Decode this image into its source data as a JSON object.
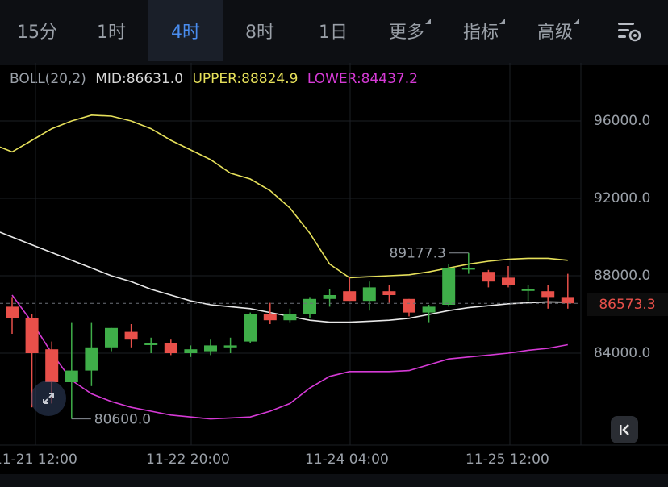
{
  "tabs": [
    {
      "label": "15分",
      "active": false,
      "has_menu": false
    },
    {
      "label": "1时",
      "active": false,
      "has_menu": false
    },
    {
      "label": "4时",
      "active": true,
      "has_menu": false
    },
    {
      "label": "8时",
      "active": false,
      "has_menu": false
    },
    {
      "label": "1日",
      "active": false,
      "has_menu": false
    },
    {
      "label": "更多",
      "active": false,
      "has_menu": true
    },
    {
      "label": "指标",
      "active": false,
      "has_menu": true
    },
    {
      "label": "高级",
      "active": false,
      "has_menu": true
    }
  ],
  "toolbar": {
    "settings_icon": "chart-settings-icon"
  },
  "indicator": {
    "name": "BOLL(20,2)",
    "mid": "MID:86631.0",
    "upper": "UPPER:88824.9",
    "lower": "LOWER:84437.2"
  },
  "colors": {
    "up": "#3fae49",
    "down": "#e8504a",
    "upper": "#e6e05a",
    "mid": "#e8e8e8",
    "lower": "#d63ad6",
    "active_tab": "#4a8df0"
  },
  "price_axis": {
    "ticks": [
      "96000.0",
      "92000.0",
      "88000.0",
      "84000.0"
    ]
  },
  "current_price": "86573.3",
  "time_axis": {
    "ticks": [
      "11-21 12:00",
      "11-22 20:00",
      "11-24 04:00",
      "11-25 12:00"
    ]
  },
  "annotations": {
    "high": "89177.3",
    "low": "80600.0"
  },
  "buttons": {
    "collapse_icon": "collapse-left-icon",
    "expand_icon": "expand-arrows-icon"
  },
  "chart_data": {
    "type": "candlestick",
    "interval": "4h",
    "ylim": [
      79500,
      98500
    ],
    "candles": [
      {
        "o": 86400,
        "h": 86900,
        "l": 85000,
        "c": 85800
      },
      {
        "o": 85800,
        "h": 86000,
        "l": 81200,
        "c": 84000
      },
      {
        "o": 84200,
        "h": 84600,
        "l": 81400,
        "c": 82500
      },
      {
        "o": 82500,
        "h": 85600,
        "l": 80600,
        "c": 83100
      },
      {
        "o": 83100,
        "h": 85600,
        "l": 82300,
        "c": 84300
      },
      {
        "o": 84300,
        "h": 85300,
        "l": 84100,
        "c": 85300
      },
      {
        "o": 85100,
        "h": 85500,
        "l": 84300,
        "c": 84700
      },
      {
        "o": 84500,
        "h": 84800,
        "l": 84000,
        "c": 84500
      },
      {
        "o": 84500,
        "h": 84700,
        "l": 83900,
        "c": 84000
      },
      {
        "o": 84000,
        "h": 84400,
        "l": 83800,
        "c": 84200
      },
      {
        "o": 84100,
        "h": 84700,
        "l": 83900,
        "c": 84400
      },
      {
        "o": 84300,
        "h": 84800,
        "l": 84000,
        "c": 84400
      },
      {
        "o": 84600,
        "h": 86100,
        "l": 84500,
        "c": 86000
      },
      {
        "o": 86000,
        "h": 86600,
        "l": 85500,
        "c": 85700
      },
      {
        "o": 85700,
        "h": 86300,
        "l": 85600,
        "c": 86000
      },
      {
        "o": 86000,
        "h": 86900,
        "l": 85800,
        "c": 86800
      },
      {
        "o": 86800,
        "h": 87300,
        "l": 86400,
        "c": 87000
      },
      {
        "o": 87200,
        "h": 87900,
        "l": 86700,
        "c": 86700
      },
      {
        "o": 86700,
        "h": 87700,
        "l": 86200,
        "c": 87400
      },
      {
        "o": 87200,
        "h": 87500,
        "l": 86600,
        "c": 87000
      },
      {
        "o": 86800,
        "h": 86800,
        "l": 85900,
        "c": 86100
      },
      {
        "o": 86100,
        "h": 86500,
        "l": 85600,
        "c": 86400
      },
      {
        "o": 86500,
        "h": 88600,
        "l": 86400,
        "c": 88400
      },
      {
        "o": 88400,
        "h": 89177.3,
        "l": 88100,
        "c": 88400
      },
      {
        "o": 88200,
        "h": 88300,
        "l": 87400,
        "c": 87700
      },
      {
        "o": 87900,
        "h": 88500,
        "l": 87400,
        "c": 87500
      },
      {
        "o": 87300,
        "h": 87500,
        "l": 86700,
        "c": 87300
      },
      {
        "o": 87200,
        "h": 87500,
        "l": 86300,
        "c": 86900
      },
      {
        "o": 86900,
        "h": 88100,
        "l": 86300,
        "c": 86573.3
      }
    ],
    "upper": [
      94400,
      95000,
      95600,
      96000,
      96300,
      96250,
      96000,
      95600,
      95000,
      94500,
      94000,
      93300,
      93000,
      92400,
      91500,
      90200,
      88600,
      87900,
      87950,
      88000,
      88050,
      88200,
      88400,
      88600,
      88750,
      88850,
      88900,
      88900,
      88800
    ],
    "mid": [
      90000,
      89600,
      89200,
      88800,
      88400,
      88000,
      87700,
      87300,
      87000,
      86700,
      86500,
      86400,
      86300,
      86100,
      85900,
      85700,
      85600,
      85600,
      85650,
      85700,
      85800,
      86000,
      86200,
      86350,
      86450,
      86550,
      86600,
      86650,
      86631
    ],
    "lower": [
      87000,
      85600,
      84000,
      82600,
      81900,
      81500,
      81200,
      81000,
      80800,
      80700,
      80600,
      80650,
      80700,
      81000,
      81400,
      82200,
      82800,
      83050,
      83050,
      83050,
      83100,
      83400,
      83700,
      83800,
      83900,
      84000,
      84150,
      84250,
      84437.2
    ]
  }
}
